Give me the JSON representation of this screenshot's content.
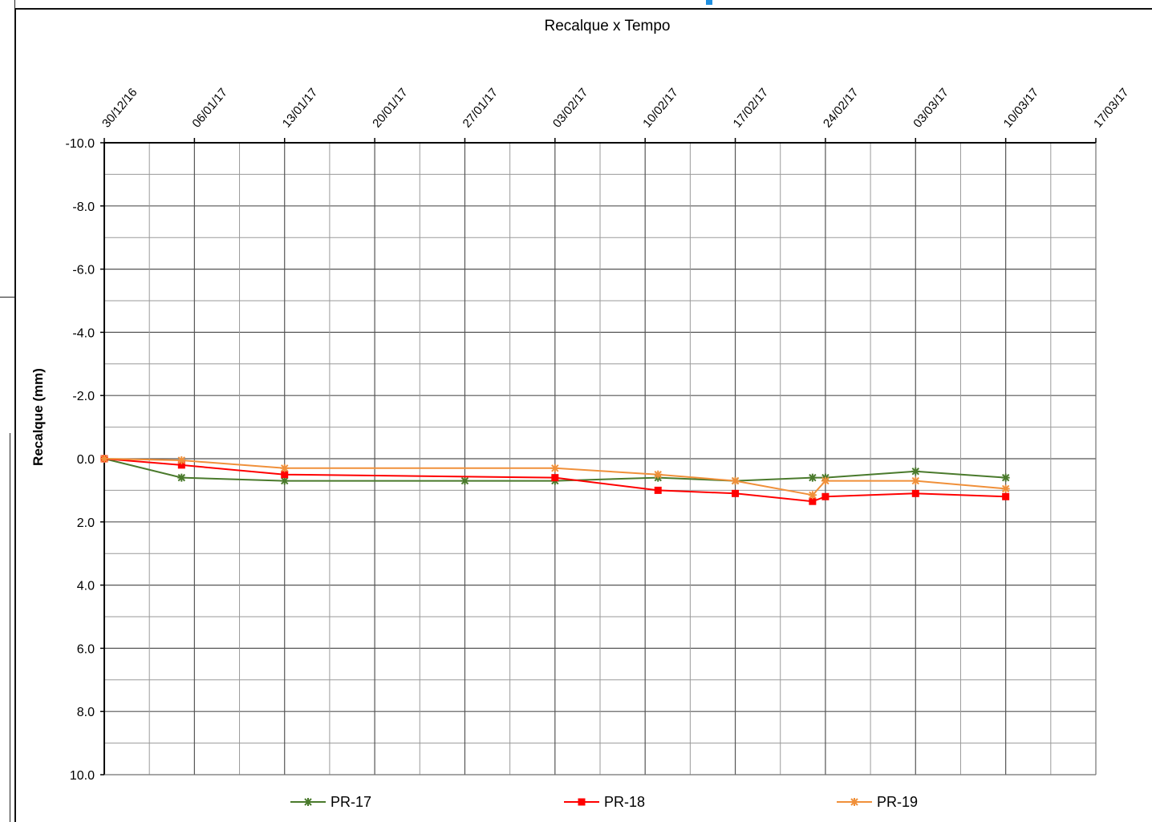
{
  "chart_data": {
    "type": "line",
    "title": "Recalque x Tempo",
    "xlabel": "",
    "ylabel": "Recalque (mm)",
    "ylim": [
      -10,
      10
    ],
    "y_inverted": true,
    "y_ticks": [
      "-10.0",
      "-8.0",
      "-6.0",
      "-4.0",
      "-2.0",
      "0.0",
      "2.0",
      "4.0",
      "6.0",
      "8.0",
      "10.0"
    ],
    "x_tick_labels": [
      "30/12/16",
      "06/01/17",
      "13/01/17",
      "20/01/17",
      "27/01/17",
      "03/02/17",
      "10/02/17",
      "17/02/17",
      "24/02/17",
      "03/03/17",
      "10/03/17",
      "17/03/17"
    ],
    "x_start": "2016-12-30",
    "x_end": "2017-03-17",
    "grid": true,
    "legend_position": "bottom",
    "series": [
      {
        "name": "PR-17",
        "color": "#4a7a2c",
        "marker": "star",
        "points": [
          [
            "2016-12-30",
            0.0
          ],
          [
            "2017-01-05",
            0.6
          ],
          [
            "2017-01-13",
            0.7
          ],
          [
            "2017-01-27",
            0.7
          ],
          [
            "2017-02-03",
            0.7
          ],
          [
            "2017-02-11",
            0.6
          ],
          [
            "2017-02-17",
            0.7
          ],
          [
            "2017-02-23",
            0.6
          ],
          [
            "2017-02-24",
            0.6
          ],
          [
            "2017-03-03",
            0.4
          ],
          [
            "2017-03-10",
            0.6
          ]
        ]
      },
      {
        "name": "PR-18",
        "color": "#ff0000",
        "marker": "square",
        "points": [
          [
            "2016-12-30",
            0.0
          ],
          [
            "2017-01-05",
            0.2
          ],
          [
            "2017-01-13",
            0.5
          ],
          [
            "2017-02-03",
            0.6
          ],
          [
            "2017-02-11",
            1.0
          ],
          [
            "2017-02-17",
            1.1
          ],
          [
            "2017-02-23",
            1.35
          ],
          [
            "2017-02-24",
            1.2
          ],
          [
            "2017-03-03",
            1.1
          ],
          [
            "2017-03-10",
            1.2
          ]
        ]
      },
      {
        "name": "PR-19",
        "color": "#f0903a",
        "marker": "star",
        "points": [
          [
            "2016-12-30",
            0.0
          ],
          [
            "2017-01-05",
            0.05
          ],
          [
            "2017-01-13",
            0.3
          ],
          [
            "2017-02-03",
            0.3
          ],
          [
            "2017-02-11",
            0.5
          ],
          [
            "2017-02-17",
            0.7
          ],
          [
            "2017-02-23",
            1.15
          ],
          [
            "2017-02-24",
            0.7
          ],
          [
            "2017-03-03",
            0.7
          ],
          [
            "2017-03-10",
            0.95
          ]
        ]
      }
    ]
  }
}
